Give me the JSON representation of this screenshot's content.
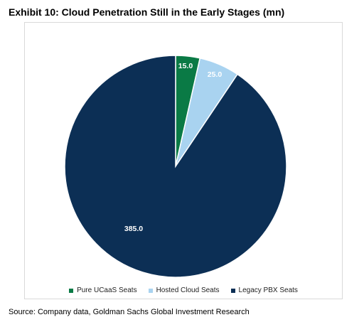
{
  "title": "Exhibit 10: Cloud Penetration Still in the Early Stages (mn)",
  "source": "Source: Company data, Goldman Sachs Global Investment Research",
  "chart_data": {
    "type": "pie",
    "title": "Exhibit 10: Cloud Penetration Still in the Early Stages (mn)",
    "legend_position": "bottom",
    "slices": [
      {
        "label": "Pure UCaaS Seats",
        "value": 15.0,
        "display": "15.0",
        "color": "#0a7a45"
      },
      {
        "label": "Hosted Cloud Seats",
        "value": 25.0,
        "display": "25.0",
        "color": "#a9d3f0"
      },
      {
        "label": "Legacy PBX Seats",
        "value": 385.0,
        "display": "385.0",
        "color": "#0c2f55"
      }
    ]
  }
}
